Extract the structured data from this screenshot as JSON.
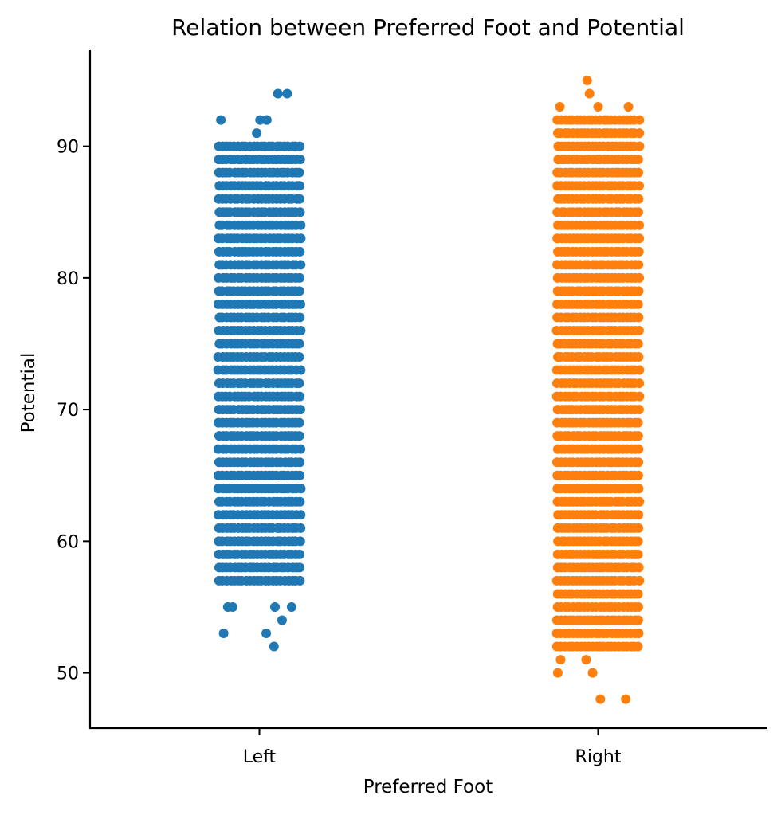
{
  "chart_data": {
    "type": "scatter",
    "title": "Relation between Preferred Foot and Potential",
    "xlabel": "Preferred Foot",
    "ylabel": "Potential",
    "categories": [
      "Left",
      "Right"
    ],
    "ylim": [
      45.8,
      97.3
    ],
    "yticks": [
      50,
      60,
      70,
      80,
      90
    ],
    "grid": false,
    "legend": "none",
    "series": [
      {
        "category": "Left",
        "color": "#1f77b4",
        "dense_range": [
          57,
          90
        ],
        "outlier_values": [
          52,
          53,
          53,
          54,
          55,
          55,
          55,
          55,
          91,
          92,
          92,
          92,
          92,
          94,
          94
        ]
      },
      {
        "category": "Right",
        "color": "#ff7f0e",
        "dense_range": [
          52,
          92
        ],
        "outlier_values": [
          48,
          48,
          50,
          50,
          51,
          51,
          93,
          93,
          93,
          94,
          95
        ]
      }
    ]
  }
}
